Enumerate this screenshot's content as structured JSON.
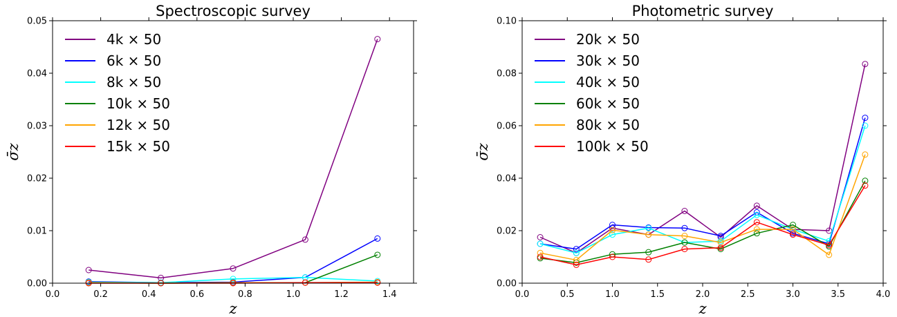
{
  "chart_data": [
    {
      "type": "line",
      "title": "Spectroscopic survey",
      "xlabel": "z",
      "ylabel": "σ̄z",
      "xlim": [
        0.0,
        1.5
      ],
      "ylim": [
        0.0,
        0.05
      ],
      "xticks": [
        "0.0",
        "0.2",
        "0.4",
        "0.6",
        "0.8",
        "1.0",
        "1.2",
        "1.4"
      ],
      "yticks": [
        "0.00",
        "0.01",
        "0.02",
        "0.03",
        "0.04",
        "0.05"
      ],
      "legend_position": "top-left",
      "x": [
        0.15,
        0.45,
        0.75,
        1.05,
        1.35
      ],
      "series": [
        {
          "name": "4k × 50",
          "color": "#800080",
          "values": [
            0.0025,
            0.001,
            0.0028,
            0.0083,
            0.0465
          ]
        },
        {
          "name": "6k × 50",
          "color": "#0000ff",
          "values": [
            0.0003,
            0.0001,
            0.0002,
            0.0011,
            0.0085
          ]
        },
        {
          "name": "8k × 50",
          "color": "#00ffff",
          "values": [
            0.0002,
            0.0001,
            0.0008,
            0.0011,
            0.0004
          ]
        },
        {
          "name": "10k × 50",
          "color": "#008000",
          "values": [
            0.0001,
            0.0,
            0.0001,
            0.0001,
            0.0054
          ]
        },
        {
          "name": "12k × 50",
          "color": "#ffa500",
          "values": [
            0.0001,
            0.0,
            0.0001,
            0.0001,
            0.0002
          ]
        },
        {
          "name": "15k × 50",
          "color": "#ff0000",
          "values": [
            0.0,
            0.0,
            0.0,
            0.0001,
            0.0001
          ]
        }
      ]
    },
    {
      "type": "line",
      "title": "Photometric survey",
      "xlabel": "z",
      "ylabel": "σ̄z",
      "xlim": [
        0.0,
        4.0
      ],
      "ylim": [
        0.0,
        0.1
      ],
      "xticks": [
        "0.0",
        "0.5",
        "1.0",
        "1.5",
        "2.0",
        "2.5",
        "3.0",
        "3.5",
        "4.0"
      ],
      "yticks": [
        "0.00",
        "0.02",
        "0.04",
        "0.06",
        "0.08",
        "0.10"
      ],
      "legend_position": "top-left",
      "x": [
        0.2,
        0.6,
        1.0,
        1.4,
        1.8,
        2.2,
        2.6,
        3.0,
        3.4,
        3.8
      ],
      "series": [
        {
          "name": "20k × 50",
          "color": "#800080",
          "values": [
            0.0175,
            0.0115,
            0.021,
            0.0185,
            0.0275,
            0.0175,
            0.0295,
            0.0205,
            0.02,
            0.0835
          ]
        },
        {
          "name": "30k × 50",
          "color": "#0000ff",
          "values": [
            0.015,
            0.013,
            0.0222,
            0.0212,
            0.021,
            0.018,
            0.027,
            0.019,
            0.015,
            0.063
          ]
        },
        {
          "name": "40k × 50",
          "color": "#00ffff",
          "values": [
            0.015,
            0.0115,
            0.0185,
            0.021,
            0.0155,
            0.016,
            0.026,
            0.0205,
            0.016,
            0.06
          ]
        },
        {
          "name": "60k × 50",
          "color": "#008000",
          "values": [
            0.0095,
            0.0078,
            0.011,
            0.0118,
            0.0155,
            0.013,
            0.019,
            0.0222,
            0.014,
            0.039
          ]
        },
        {
          "name": "80k × 50",
          "color": "#ffa500",
          "values": [
            0.0115,
            0.0088,
            0.0202,
            0.0185,
            0.018,
            0.0155,
            0.0205,
            0.0205,
            0.0108,
            0.049
          ]
        },
        {
          "name": "100k × 50",
          "color": "#ff0000",
          "values": [
            0.01,
            0.007,
            0.01,
            0.009,
            0.013,
            0.0135,
            0.0232,
            0.0185,
            0.0145,
            0.0372
          ]
        }
      ]
    }
  ]
}
